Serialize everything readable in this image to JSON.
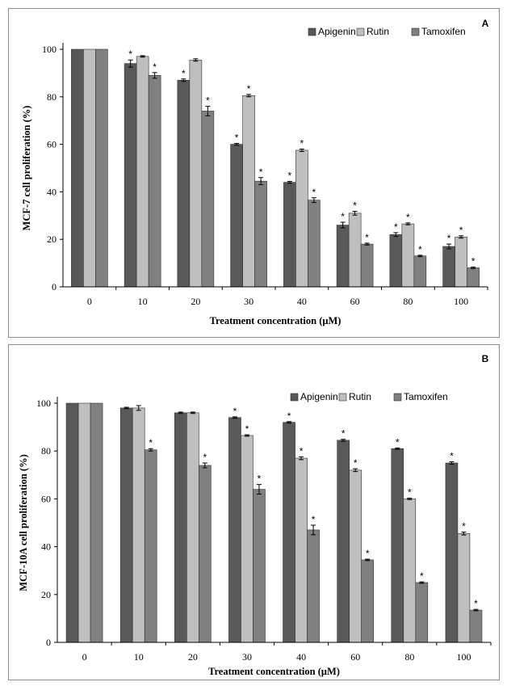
{
  "chart_data": [
    {
      "type": "bar",
      "panel_label": "A",
      "ylabel": "MCF-7 cell proliferation (%)",
      "xlabel": "Treatment concentration (μM)",
      "categories": [
        "0",
        "10",
        "20",
        "30",
        "40",
        "60",
        "80",
        "100"
      ],
      "ylim": [
        0,
        100
      ],
      "yticks": [
        "0",
        "20",
        "40",
        "60",
        "80",
        "100"
      ],
      "legend_position": "top-right",
      "grid": false,
      "significance_marker": "*",
      "series": [
        {
          "name": "Apigenin",
          "color": "#595959",
          "values": [
            100,
            94,
            87,
            60,
            44,
            26,
            22,
            17
          ],
          "errors": [
            0,
            1.5,
            0.5,
            0.4,
            0.4,
            1.2,
            0.8,
            1.0
          ],
          "significant": [
            false,
            true,
            true,
            true,
            true,
            true,
            true,
            true
          ]
        },
        {
          "name": "Rutin",
          "color": "#bfbfbf",
          "values": [
            100,
            97,
            95.5,
            80.5,
            57.5,
            31,
            26.5,
            21
          ],
          "errors": [
            0,
            0.3,
            0.5,
            0.5,
            0.5,
            0.8,
            0.4,
            0.5
          ],
          "significant": [
            false,
            false,
            false,
            true,
            true,
            true,
            true,
            true
          ]
        },
        {
          "name": "Tamoxifen",
          "color": "#808080",
          "values": [
            100,
            89,
            74,
            44.5,
            36.5,
            18,
            13,
            8
          ],
          "errors": [
            0,
            1.2,
            2.0,
            1.5,
            1.0,
            0.4,
            0.3,
            0.3
          ],
          "significant": [
            false,
            true,
            true,
            true,
            true,
            true,
            true,
            true
          ]
        }
      ]
    },
    {
      "type": "bar",
      "panel_label": "B",
      "ylabel": "MCF-10A cell proliferation (%)",
      "xlabel": "Treatment concentration (μM)",
      "categories": [
        "0",
        "10",
        "20",
        "30",
        "40",
        "60",
        "80",
        "100"
      ],
      "ylim": [
        0,
        100
      ],
      "yticks": [
        "0",
        "20",
        "40",
        "60",
        "80",
        "100"
      ],
      "legend_position": "top-right",
      "grid": false,
      "significance_marker": "*",
      "series": [
        {
          "name": "Apigenin",
          "color": "#595959",
          "values": [
            100,
            98,
            96,
            94,
            92,
            84.5,
            81,
            75
          ],
          "errors": [
            0,
            0.3,
            0.3,
            0.3,
            0.3,
            0.4,
            0.3,
            0.5
          ],
          "significant": [
            false,
            false,
            false,
            true,
            true,
            true,
            true,
            true
          ]
        },
        {
          "name": "Rutin",
          "color": "#bfbfbf",
          "values": [
            100,
            98,
            96,
            86.5,
            77,
            72,
            60,
            45.5
          ],
          "errors": [
            0,
            1.0,
            0.3,
            0.3,
            0.6,
            0.6,
            0.3,
            0.6
          ],
          "significant": [
            false,
            false,
            false,
            true,
            true,
            true,
            true,
            true
          ]
        },
        {
          "name": "Tamoxifen",
          "color": "#808080",
          "values": [
            100,
            80.5,
            74,
            64,
            47,
            34.5,
            25,
            13.5
          ],
          "errors": [
            0,
            0.5,
            1.0,
            2.0,
            2.0,
            0.3,
            0.3,
            0.3
          ],
          "significant": [
            false,
            true,
            true,
            true,
            true,
            true,
            true,
            true
          ]
        }
      ]
    }
  ]
}
